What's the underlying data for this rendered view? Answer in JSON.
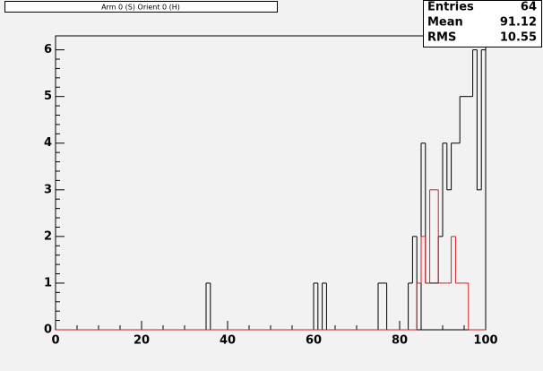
{
  "chart_data": {
    "type": "histogram",
    "title": "Arm 0 (S) Orient 0 (H)",
    "bins": [
      0,
      1,
      2,
      3,
      4,
      5,
      6,
      7,
      8,
      9,
      10,
      11,
      12,
      13,
      14,
      15,
      16,
      17,
      18,
      19,
      20,
      21,
      22,
      23,
      24,
      25,
      26,
      27,
      28,
      29,
      30,
      31,
      32,
      33,
      34,
      35,
      36,
      37,
      38,
      39,
      40,
      41,
      42,
      43,
      44,
      45,
      46,
      47,
      48,
      49,
      50,
      51,
      52,
      53,
      54,
      55,
      56,
      57,
      58,
      59,
      60,
      61,
      62,
      63,
      64,
      65,
      66,
      67,
      68,
      69,
      70,
      71,
      72,
      73,
      74,
      75,
      76,
      77,
      78,
      79,
      80,
      81,
      82,
      83,
      84,
      85,
      86,
      87,
      88,
      89,
      90,
      91,
      92,
      93,
      94,
      95,
      96,
      97,
      98,
      99,
      100
    ],
    "series": [
      {
        "color": "#000000",
        "values": [
          0,
          0,
          0,
          0,
          0,
          0,
          0,
          0,
          0,
          0,
          0,
          0,
          0,
          0,
          0,
          0,
          0,
          0,
          0,
          0,
          0,
          0,
          0,
          0,
          0,
          0,
          0,
          0,
          0,
          0,
          0,
          0,
          0,
          0,
          0,
          1,
          0,
          0,
          0,
          0,
          0,
          0,
          0,
          0,
          0,
          0,
          0,
          0,
          0,
          0,
          0,
          0,
          0,
          0,
          0,
          0,
          0,
          0,
          0,
          0,
          1,
          0,
          1,
          0,
          0,
          0,
          0,
          0,
          0,
          0,
          0,
          0,
          0,
          0,
          0,
          1,
          1,
          0,
          0,
          0,
          0,
          0,
          1,
          2,
          0,
          4,
          1,
          1,
          1,
          2,
          4,
          3,
          4,
          4,
          5,
          5,
          5,
          6,
          3,
          6
        ]
      },
      {
        "color": "#d42020",
        "values": [
          0,
          0,
          0,
          0,
          0,
          0,
          0,
          0,
          0,
          0,
          0,
          0,
          0,
          0,
          0,
          0,
          0,
          0,
          0,
          0,
          0,
          0,
          0,
          0,
          0,
          0,
          0,
          0,
          0,
          0,
          0,
          0,
          0,
          0,
          0,
          0,
          0,
          0,
          0,
          0,
          0,
          0,
          0,
          0,
          0,
          0,
          0,
          0,
          0,
          0,
          0,
          0,
          0,
          0,
          0,
          0,
          0,
          0,
          0,
          0,
          0,
          0,
          0,
          0,
          0,
          0,
          0,
          0,
          0,
          0,
          0,
          0,
          0,
          0,
          0,
          0,
          0,
          0,
          0,
          0,
          0,
          0,
          0,
          0,
          1,
          2,
          1,
          3,
          3,
          1,
          1,
          1,
          2,
          1,
          1,
          1,
          0,
          0,
          0,
          0
        ]
      }
    ],
    "xlim": [
      0,
      100
    ],
    "ylim": [
      0,
      6.3
    ],
    "xticks": [
      0,
      20,
      40,
      60,
      80,
      100
    ],
    "yticks": [
      0,
      1,
      2,
      3,
      4,
      5,
      6
    ],
    "stats": [
      {
        "label": "Entries",
        "value": 64
      },
      {
        "label": "Mean",
        "value": 91.12
      },
      {
        "label": "RMS",
        "value": 10.55
      }
    ]
  }
}
